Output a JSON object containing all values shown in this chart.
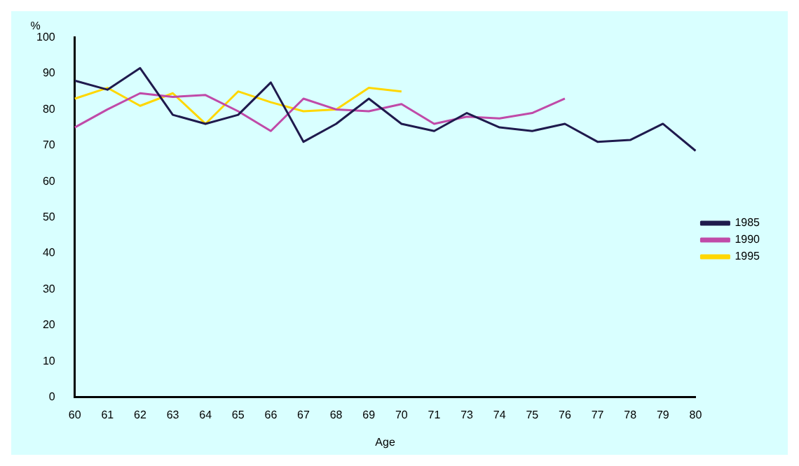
{
  "chart_data": {
    "type": "line",
    "xlabel": "Age",
    "ylabel": "%",
    "categories": [
      "60",
      "61",
      "62",
      "63",
      "64",
      "65",
      "66",
      "67",
      "68",
      "69",
      "70",
      "71",
      "73",
      "74",
      "75",
      "76",
      "77",
      "78",
      "79",
      "80"
    ],
    "series": [
      {
        "name": "1985",
        "color": "#1f1a4d",
        "values": [
          88,
          85.5,
          91.5,
          78.5,
          76,
          78.5,
          87.5,
          71,
          76,
          83,
          76,
          74,
          79,
          75,
          74,
          76,
          71,
          71.5,
          76,
          68.5
        ]
      },
      {
        "name": "1990",
        "color": "#c04aa8",
        "values": [
          75,
          80,
          84.5,
          83.5,
          84,
          79.5,
          74,
          83,
          80,
          79.5,
          81.5,
          76,
          78,
          77.5,
          79,
          83,
          null,
          null,
          null,
          null
        ]
      },
      {
        "name": "1995",
        "color": "#ffd700",
        "values": [
          83,
          86,
          81,
          84.5,
          76,
          85,
          82,
          79.5,
          80,
          86,
          85,
          null,
          null,
          null,
          null,
          null,
          null,
          null,
          null,
          null
        ]
      }
    ],
    "ylim": [
      0,
      100
    ],
    "yticks": [
      0,
      10,
      20,
      30,
      40,
      50,
      60,
      70,
      80,
      90,
      100
    ],
    "grid": false,
    "legend": "right",
    "marker": "none",
    "line_style": "solid"
  }
}
